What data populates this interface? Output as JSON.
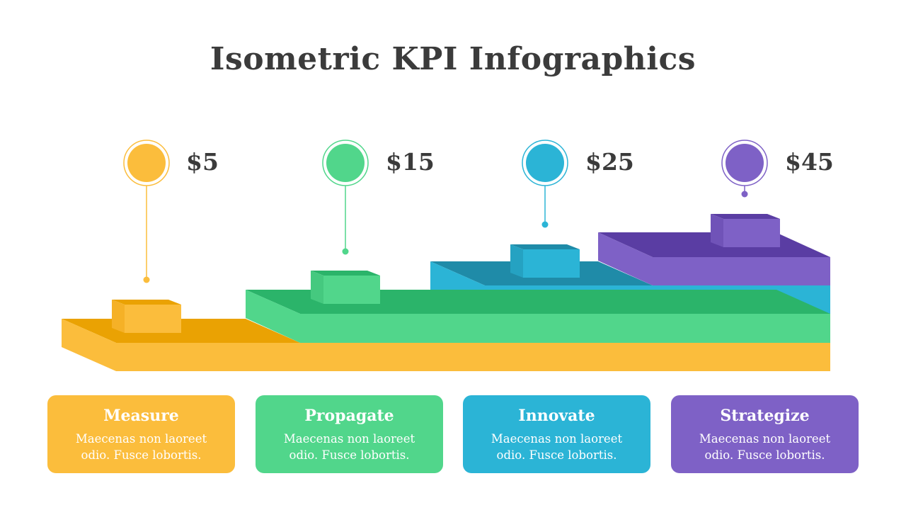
{
  "title": "Isometric KPI Infographics",
  "colors": {
    "yellow": "#fbbd3c",
    "green": "#51d68b",
    "blue": "#2bb4d6",
    "purple": "#7e61c6",
    "text": "#3b3b3b"
  },
  "kpis": [
    {
      "value": "$5",
      "title": "Measure",
      "desc": "Maecenas non laoreet odio. Fusce lobortis."
    },
    {
      "value": "$15",
      "title": "Propagate",
      "desc": "Maecenas non laoreet odio. Fusce lobortis."
    },
    {
      "value": "$25",
      "title": "Innovate",
      "desc": "Maecenas non laoreet odio. Fusce lobortis."
    },
    {
      "value": "$45",
      "title": "Strategize",
      "desc": "Maecenas non laoreet odio. Fusce lobortis."
    }
  ]
}
